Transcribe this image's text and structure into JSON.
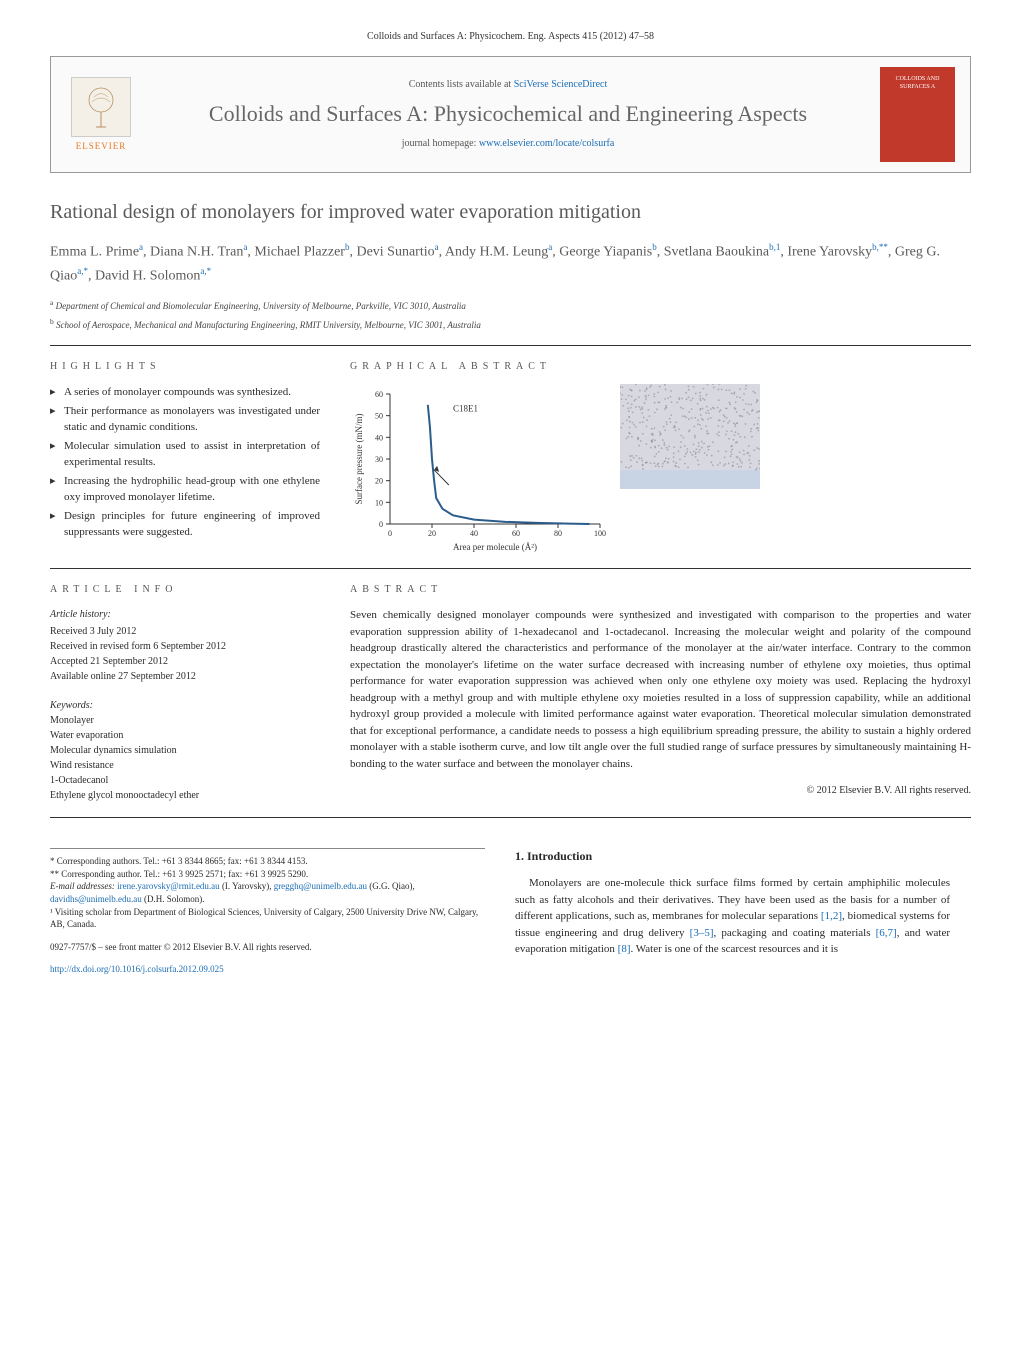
{
  "header_citation": "Colloids and Surfaces A: Physicochem. Eng. Aspects 415 (2012) 47–58",
  "journal_box": {
    "contents_prefix": "Contents lists available at ",
    "contents_link": "SciVerse ScienceDirect",
    "journal_title": "Colloids and Surfaces A: Physicochemical and Engineering Aspects",
    "homepage_prefix": "journal homepage: ",
    "homepage_link": "www.elsevier.com/locate/colsurfa",
    "publisher": "ELSEVIER",
    "cover_text": "COLLOIDS AND SURFACES A"
  },
  "article_title": "Rational design of monolayers for improved water evaporation mitigation",
  "authors_html": "Emma L. Prime<sup>a</sup>, Diana N.H. Tran<sup>a</sup>, Michael Plazzer<sup>b</sup>, Devi Sunartio<sup>a</sup>, Andy H.M. Leung<sup>a</sup>, George Yiapanis<sup>b</sup>, Svetlana Baoukina<sup>b,1</sup>, Irene Yarovsky<sup>b,**</sup>, Greg G. Qiao<sup>a,*</sup>, David H. Solomon<sup>a,*</sup>",
  "affiliations": [
    {
      "sup": "a",
      "text": "Department of Chemical and Biomolecular Engineering, University of Melbourne, Parkville, VIC 3010, Australia"
    },
    {
      "sup": "b",
      "text": "School of Aerospace, Mechanical and Manufacturing Engineering, RMIT University, Melbourne, VIC 3001, Australia"
    }
  ],
  "highlights": {
    "heading": "HIGHLIGHTS",
    "items": [
      "A series of monolayer compounds was synthesized.",
      "Their performance as monolayers was investigated under static and dynamic conditions.",
      "Molecular simulation used to assist in interpretation of experimental results.",
      "Increasing the hydrophilic head-group with one ethylene oxy improved monolayer lifetime.",
      "Design principles for future engineering of improved suppressants were suggested."
    ]
  },
  "graphical_abstract": {
    "heading": "GRAPHICAL ABSTRACT",
    "chart": {
      "type": "line",
      "series_label": "C18E1",
      "xlabel": "Area per molecule (Å²)",
      "ylabel": "Surface pressure (mN/m)",
      "xlim": [
        0,
        100
      ],
      "ylim": [
        0,
        60
      ],
      "xtick_step": 20,
      "ytick_step": 10,
      "line_color": "#2b5d8c",
      "line_width": 2,
      "background_color": "#ffffff",
      "axis_color": "#333333",
      "tick_fontsize": 8,
      "label_fontsize": 9,
      "data_points": [
        {
          "x": 18,
          "y": 55
        },
        {
          "x": 19,
          "y": 45
        },
        {
          "x": 20,
          "y": 30
        },
        {
          "x": 21,
          "y": 20
        },
        {
          "x": 22,
          "y": 12
        },
        {
          "x": 25,
          "y": 7
        },
        {
          "x": 30,
          "y": 4
        },
        {
          "x": 40,
          "y": 2
        },
        {
          "x": 55,
          "y": 1
        },
        {
          "x": 70,
          "y": 0.5
        },
        {
          "x": 85,
          "y": 0.2
        },
        {
          "x": 95,
          "y": 0
        }
      ],
      "arrow": {
        "from_x": 28,
        "from_y": 18,
        "to_x": 21,
        "to_y": 25,
        "color": "#333333"
      }
    },
    "sim_image": {
      "width": 140,
      "height": 105,
      "background": "#d8d8e0",
      "dot_color": "#8a8a9a",
      "bottom_band_color": "#c8d4e4"
    }
  },
  "article_info": {
    "heading": "ARTICLE INFO",
    "history_heading": "Article history:",
    "history": [
      "Received 3 July 2012",
      "Received in revised form 6 September 2012",
      "Accepted 21 September 2012",
      "Available online 27 September 2012"
    ],
    "keywords_heading": "Keywords:",
    "keywords": [
      "Monolayer",
      "Water evaporation",
      "Molecular dynamics simulation",
      "Wind resistance",
      "1-Octadecanol",
      "Ethylene glycol monooctadecyl ether"
    ]
  },
  "abstract": {
    "heading": "ABSTRACT",
    "text": "Seven chemically designed monolayer compounds were synthesized and investigated with comparison to the properties and water evaporation suppression ability of 1-hexadecanol and 1-octadecanol. Increasing the molecular weight and polarity of the compound headgroup drastically altered the characteristics and performance of the monolayer at the air/water interface. Contrary to the common expectation the monolayer's lifetime on the water surface decreased with increasing number of ethylene oxy moieties, thus optimal performance for water evaporation suppression was achieved when only one ethylene oxy moiety was used. Replacing the hydroxyl headgroup with a methyl group and with multiple ethylene oxy moieties resulted in a loss of suppression capability, while an additional hydroxyl group provided a molecule with limited performance against water evaporation. Theoretical molecular simulation demonstrated that for exceptional performance, a candidate needs to possess a high equilibrium spreading pressure, the ability to sustain a highly ordered monolayer with a stable isotherm curve, and low tilt angle over the full studied range of surface pressures by simultaneously maintaining H-bonding to the water surface and between the monolayer chains.",
    "copyright": "© 2012 Elsevier B.V. All rights reserved."
  },
  "introduction": {
    "heading": "1. Introduction",
    "text_parts": [
      "Monolayers are one-molecule thick surface films formed by certain amphiphilic molecules such as fatty alcohols and their derivatives. They have been used as the basis for a number of different applications, such as, membranes for molecular separations ",
      "[1,2]",
      ", biomedical systems for tissue engineering and drug delivery ",
      "[3–5]",
      ", packaging and coating materials ",
      "[6,7]",
      ", and water evaporation mitigation ",
      "[8]",
      ". Water is one of the scarcest resources and it is"
    ]
  },
  "footnotes": {
    "lines": [
      "* Corresponding authors. Tel.: +61 3 8344 8665; fax: +61 3 8344 4153.",
      "** Corresponding author. Tel.: +61 3 9925 2571; fax: +61 3 9925 5290."
    ],
    "email_prefix": "E-mail addresses: ",
    "emails": [
      {
        "email": "irene.yarovsky@rmit.edu.au",
        "who": "(I. Yarovsky),"
      },
      {
        "email": "gregghq@unimelb.edu.au",
        "who": "(G.G. Qiao),"
      },
      {
        "email": "davidhs@unimelb.edu.au",
        "who": "(D.H. Solomon)."
      }
    ],
    "note1": "¹ Visiting scholar from Department of Biological Sciences, University of Calgary, 2500 University Drive NW, Calgary, AB, Canada."
  },
  "footer": {
    "issn_line": "0927-7757/$ – see front matter © 2012 Elsevier B.V. All rights reserved.",
    "doi": "http://dx.doi.org/10.1016/j.colsurfa.2012.09.025"
  }
}
